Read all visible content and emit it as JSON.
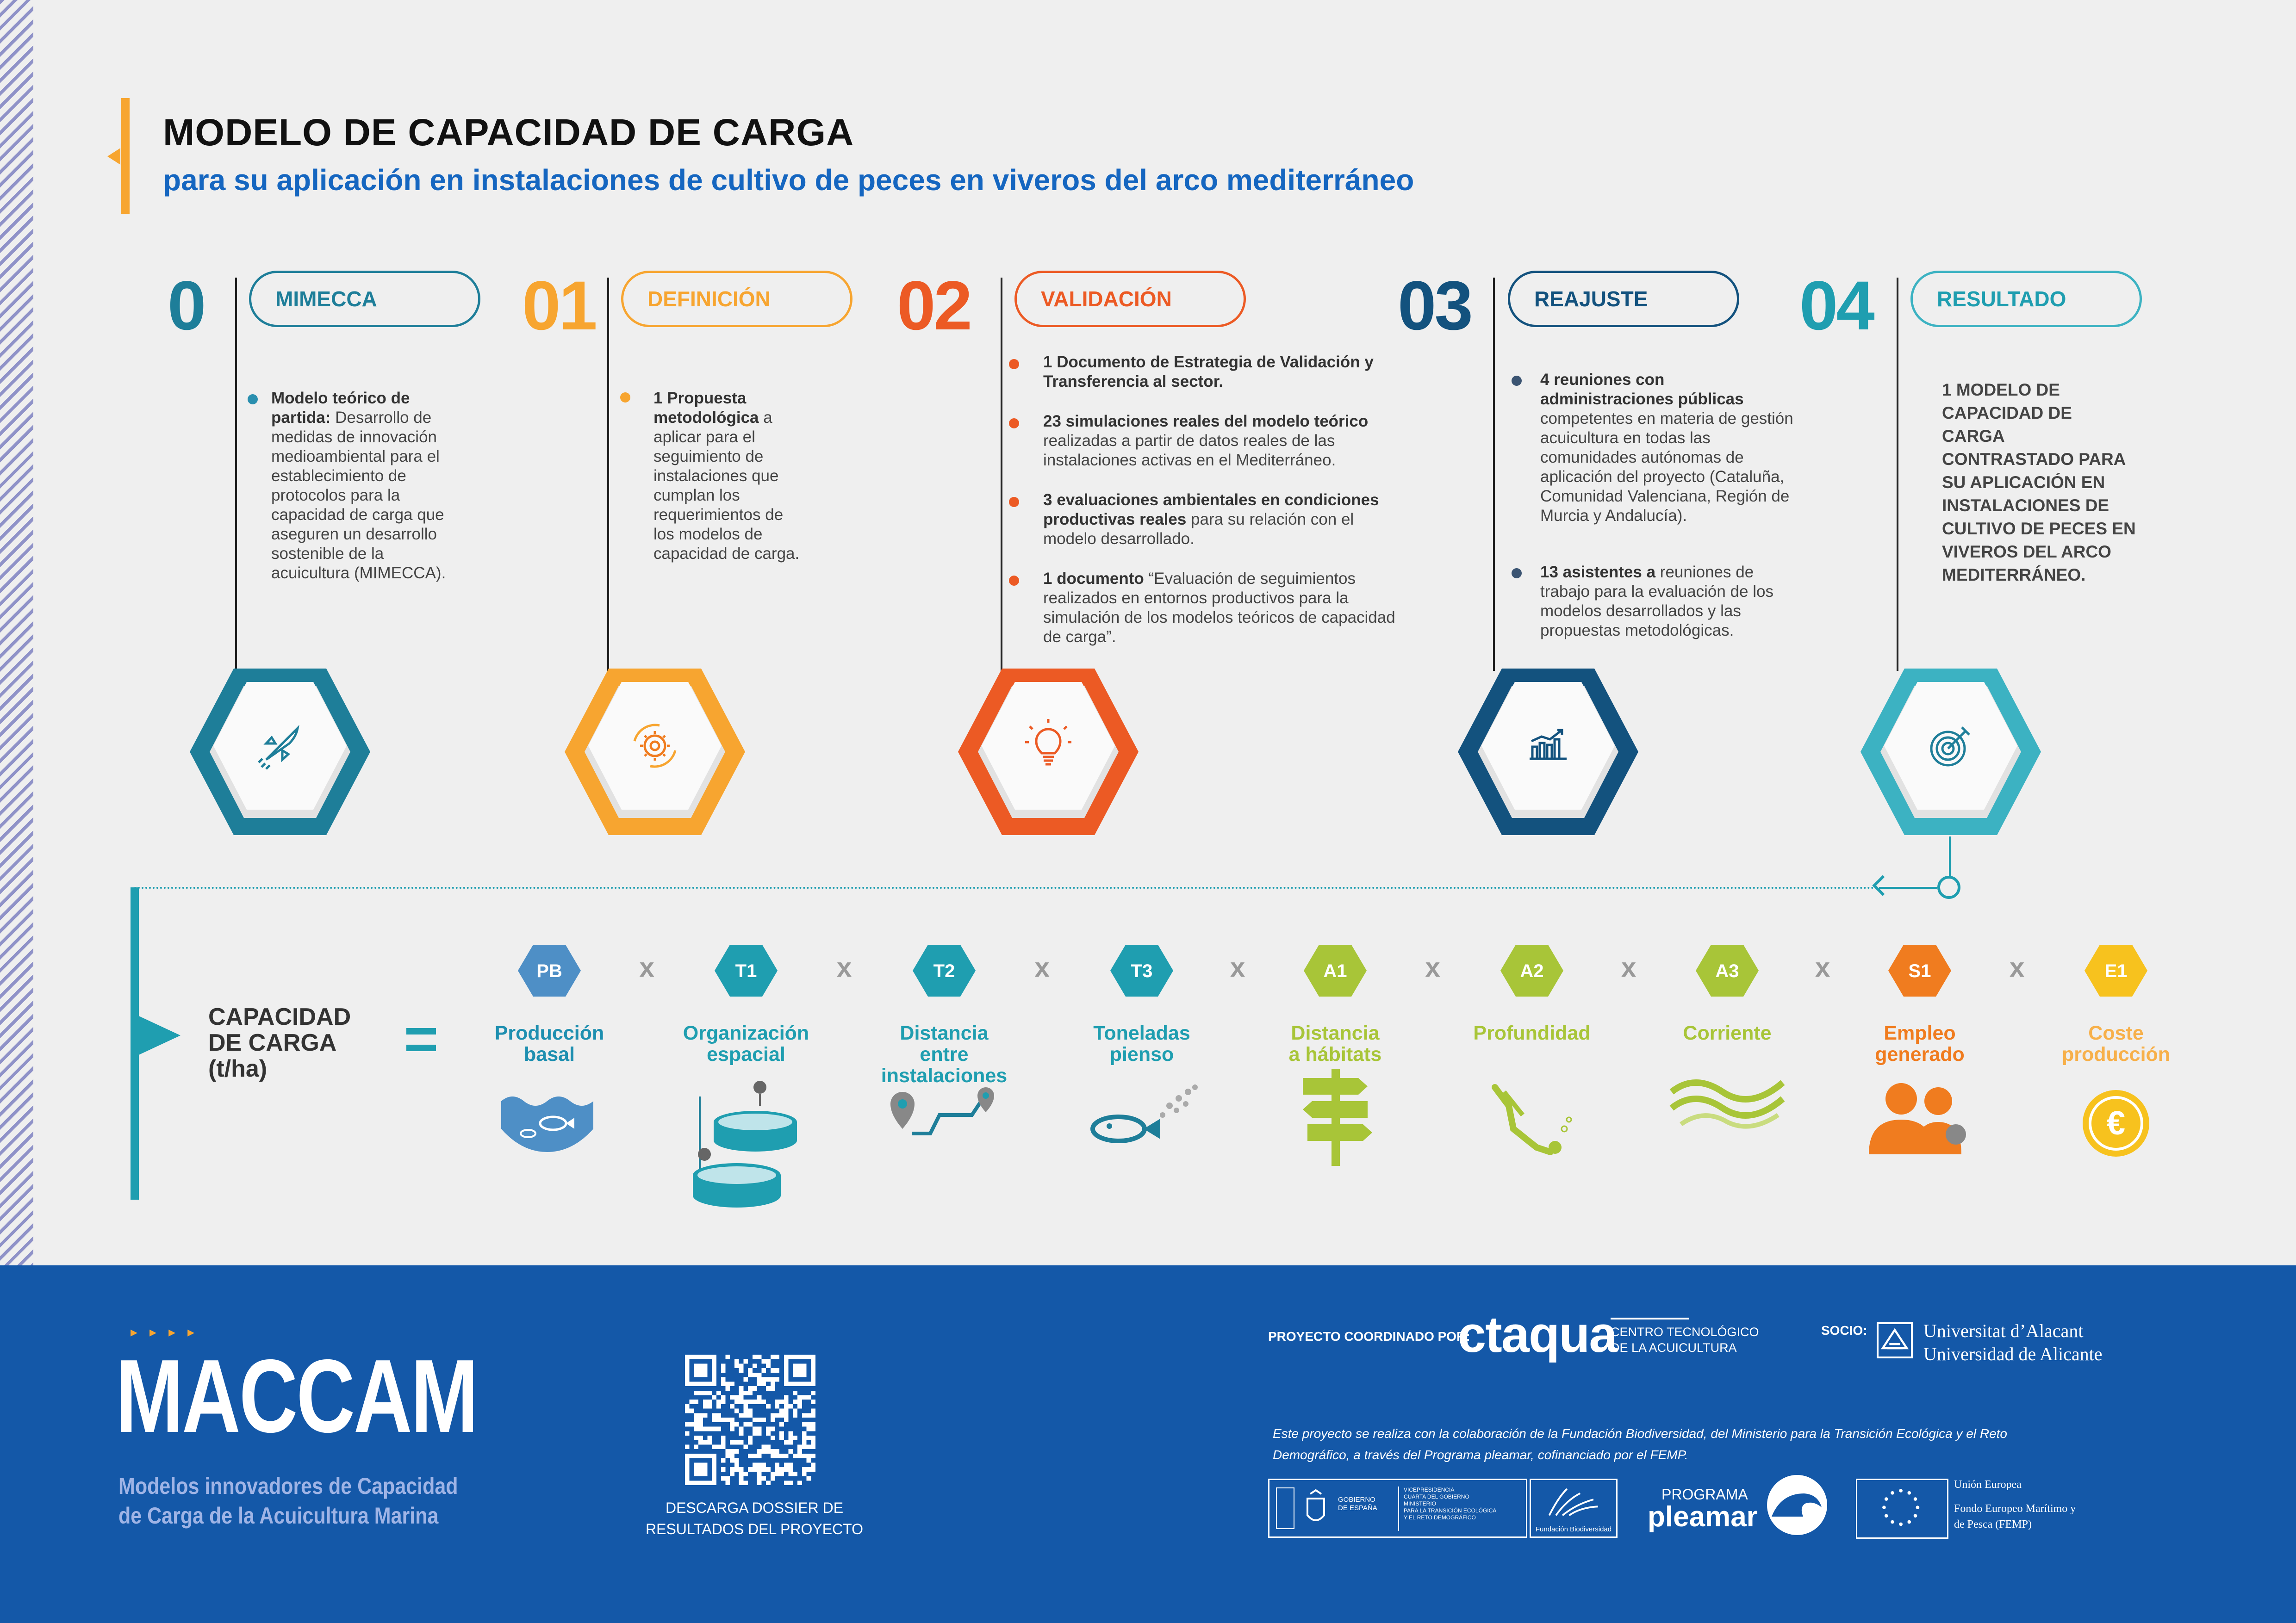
{
  "title": "MODELO DE CAPACIDAD DE CARGA",
  "subtitle": "para su aplicación en instalaciones de cultivo de peces en viveros del arco mediterráneo",
  "steps": [
    {
      "num": "0",
      "label": "MIMECCA",
      "color": "#1e7e99",
      "icon": "rocket-icon",
      "desc_bold": "Modelo teórico de partida:",
      "desc": " Desarrollo de medidas de innovación medioambiental para el establecimiento de protocolos para la capacidad de carga que aseguren un desarrollo sostenible de la acuicultura (MIMECCA)."
    },
    {
      "num": "01",
      "label": "DEFINICIÓN",
      "color": "#f7a530",
      "icon": "gear-cycle-icon",
      "desc_bold": "1 Propuesta metodológica",
      "desc": " a aplicar para el seguimiento de instalaciones que cumplan los requerimientos de los modelos de capacidad de carga."
    },
    {
      "num": "02",
      "label": "VALIDACIÓN",
      "color": "#ec5a24",
      "icon": "lightbulb-icon",
      "items": [
        {
          "bold": "1 Documento de Estrategia de Validación y Transferencia al sector.",
          "text": ""
        },
        {
          "bold": "23 simulaciones reales del modelo teórico",
          "text": " realizadas a partir de datos reales de las instalaciones activas en el Mediterráneo."
        },
        {
          "bold": "3 evaluaciones ambientales en condiciones productivas reales",
          "text": " para su relación con el modelo desarrollado."
        },
        {
          "bold": "1 documento",
          "text": " “Evaluación de seguimientos realizados en entornos productivos para la simulación de los modelos teóricos de capacidad de carga”."
        }
      ]
    },
    {
      "num": "03",
      "label": "REAJUSTE",
      "color": "#13527e",
      "icon": "bar-chart-icon",
      "items": [
        {
          "bold": "4 reuniones con administraciones públicas",
          "text": " competentes en materia de gestión acuicultura en todas las comunidades autónomas de aplicación del proyecto (Cataluña, Comunidad Valenciana, Región de Murcia y Andalucía)."
        },
        {
          "bold": "13 asistentes a",
          "text": " reuniones de trabajo para la evaluación de los modelos desarrollados y las propuestas metodológicas."
        }
      ]
    },
    {
      "num": "04",
      "label": "RESULTADO",
      "color": "#3cb2c2",
      "icon": "target-icon",
      "result": "1 MODELO DE CAPACIDAD DE CARGA CONTRASTADO PARA SU APLICACIÓN EN INSTALACIONES DE CULTIVO DE PECES EN VIVEROS DEL ARCO MEDITERRÁNEO."
    }
  ],
  "formula": {
    "label_line1": "CAPACIDAD",
    "label_line2": "DE CARGA",
    "label_line3": "(t/ha)",
    "equals": "=",
    "times": "x",
    "factors": [
      {
        "code": "PB",
        "l1": "Producción",
        "l2": "basal",
        "color": "#1e8fb0",
        "hex": "#4e8fc6",
        "icon": "water-fish-icon"
      },
      {
        "code": "T1",
        "l1": "Organización",
        "l2": "espacial",
        "color": "#1f9eb0",
        "hex": "#1f9eb0",
        "icon": "fish-cages-icon"
      },
      {
        "code": "T2",
        "l1": "Distancia entre",
        "l2": "instalaciones",
        "color": "#1f9eb0",
        "hex": "#1f9eb0",
        "icon": "distance-pins-icon"
      },
      {
        "code": "T3",
        "l1": "Toneladas",
        "l2": "pienso",
        "color": "#1f9eb0",
        "hex": "#1f9eb0",
        "icon": "fish-feed-icon"
      },
      {
        "code": "A1",
        "l1": "Distancia",
        "l2": "a hábitats",
        "color": "#a8c538",
        "hex": "#a8c538",
        "icon": "signpost-icon"
      },
      {
        "code": "A2",
        "l1": "Profundidad",
        "l2": "",
        "color": "#a8c538",
        "hex": "#a8c538",
        "icon": "diver-icon"
      },
      {
        "code": "A3",
        "l1": "Corriente",
        "l2": "",
        "color": "#a8c538",
        "hex": "#a8c538",
        "icon": "current-waves-icon"
      },
      {
        "code": "S1",
        "l1": "Empleo",
        "l2": "generado",
        "color": "#f07c1f",
        "hex": "#f07c1f",
        "icon": "people-icon"
      },
      {
        "code": "E1",
        "l1": "Coste",
        "l2": "producción",
        "color": "#f7b04a",
        "hex": "#f7c21e",
        "icon": "euro-coin-icon"
      }
    ]
  },
  "footer": {
    "brand": "MACCAM",
    "tagline1": "Modelos innovadores de Capacidad",
    "tagline2": "de Carga de la Acuicultura Marina",
    "qr_label1": "DESCARGA DOSSIER DE",
    "qr_label2": "RESULTADOS DEL PROYECTO",
    "coord_label": "PROYECTO COORDINADO POR:",
    "ctaqua": "ctaqua",
    "ctaqua_sub1": "CENTRO TECNOLÓGICO",
    "ctaqua_sub2": "DE LA ACUICULTURA",
    "socio_label": "SOCIO:",
    "ua1": "Universitat d’Alacant",
    "ua2": "Universidad de Alicante",
    "collab1": "Este proyecto se realiza con la colaboración de la Fundación Biodiversidad, del Ministerio para la Transición Ecológica y el Reto",
    "collab2": "Demográfico, a través del Programa pleamar, cofinanciado por el FEMP.",
    "gob1": "GOBIERNO",
    "gob2": "DE ESPAÑA",
    "min1": "VICEPRESIDENCIA",
    "min2": "CUARTA DEL GOBIERNO",
    "min3": "MINISTERIO",
    "min4": "PARA LA TRANSICIÓN ECOLÓGICA",
    "min5": "Y EL RETO DEMOGRÁFICO",
    "fb": "Fundación Biodiversidad",
    "prog1": "PROGRAMA",
    "prog2": "pleamar",
    "eu1": "Unión Europea",
    "eu2": "Fondo Europeo Marítimo y",
    "eu3": "de Pesca (FEMP)"
  }
}
